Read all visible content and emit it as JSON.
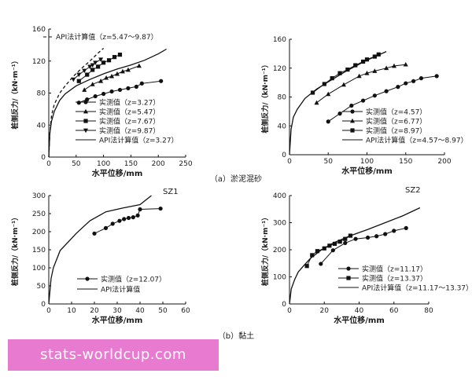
{
  "chart_data": [
    {
      "type": "line",
      "id": "a-left",
      "xlabel": "水平位移/mm",
      "ylabel": "桩侧反力/（kN·m⁻¹）",
      "xlim": [
        0,
        250
      ],
      "ylim": [
        0,
        160
      ],
      "xticks": [
        0,
        50,
        100,
        150,
        200,
        250
      ],
      "yticks": [
        0,
        40,
        80,
        120,
        160
      ],
      "annotations": [
        "API法计算值（z=5.47～9.87）"
      ],
      "series": [
        {
          "name": "实测值（z=3.27）",
          "marker": "circle",
          "x": [
            55,
            70,
            85,
            100,
            115,
            130,
            145,
            160,
            170,
            205
          ],
          "y": [
            68,
            72,
            76,
            79,
            82,
            84,
            86,
            88,
            92,
            95
          ]
        },
        {
          "name": "实测值（z=5.47）",
          "marker": "triangle",
          "x": [
            65,
            80,
            95,
            105,
            115,
            125,
            135,
            145,
            165
          ],
          "y": [
            84,
            91,
            95,
            99,
            101,
            104,
            107,
            109,
            114
          ]
        },
        {
          "name": "实测值（z=7.67）",
          "marker": "square",
          "x": [
            55,
            70,
            80,
            90,
            100,
            110,
            120,
            130
          ],
          "y": [
            95,
            103,
            109,
            113,
            118,
            121,
            125,
            128
          ]
        },
        {
          "name": "实测值（z=9.87）",
          "marker": "triangle-down",
          "x": [
            45,
            55,
            65,
            75,
            80,
            85,
            95
          ],
          "y": [
            97,
            103,
            108,
            113,
            115,
            118,
            122
          ]
        },
        {
          "name": "API法计算值（z=3.27）",
          "marker": "none",
          "style": "solid",
          "x": [
            0,
            2,
            5,
            10,
            20,
            30,
            50,
            75,
            100,
            125,
            150,
            175,
            200,
            215
          ],
          "y": [
            0,
            30,
            45,
            57,
            71,
            79,
            89,
            97,
            104,
            110,
            115,
            121,
            129,
            135
          ]
        },
        {
          "name": "API法计算值（z=5.47～9.87）",
          "marker": "none",
          "style": "dashed",
          "x": [
            0,
            2,
            5,
            10,
            20,
            30,
            45,
            60,
            75,
            90,
            100
          ],
          "y": [
            0,
            30,
            52,
            66,
            80,
            89,
            101,
            111,
            120,
            130,
            136
          ]
        }
      ]
    },
    {
      "type": "line",
      "id": "a-right",
      "xlabel": "水平位移/mm",
      "ylabel": "桩侧反力/（kN·m⁻¹）",
      "xlim": [
        0,
        200
      ],
      "ylim": [
        0,
        160
      ],
      "xticks": [
        0,
        50,
        100,
        150,
        200
      ],
      "yticks": [
        0,
        40,
        80,
        120,
        160
      ],
      "series": [
        {
          "name": "实测值（z=4.57）",
          "marker": "circle",
          "x": [
            50,
            65,
            80,
            95,
            110,
            125,
            140,
            150,
            160,
            170,
            190
          ],
          "y": [
            46,
            57,
            68,
            75,
            82,
            88,
            94,
            99,
            102,
            106,
            109
          ]
        },
        {
          "name": "实测值（z=6.77）",
          "marker": "triangle",
          "x": [
            35,
            50,
            70,
            90,
            100,
            110,
            125,
            135,
            150
          ],
          "y": [
            72,
            84,
            97,
            109,
            113,
            116,
            120,
            123,
            125
          ]
        },
        {
          "name": "实测值（z=8.97）",
          "marker": "square",
          "x": [
            30,
            45,
            55,
            65,
            75,
            85,
            95,
            100,
            110,
            115
          ],
          "y": [
            86,
            98,
            106,
            113,
            118,
            124,
            129,
            132,
            136,
            139
          ]
        },
        {
          "name": "API法计算值（z=4.57～8.97）",
          "marker": "none",
          "style": "solid",
          "x": [
            0,
            2,
            5,
            10,
            20,
            35,
            50,
            75,
            100,
            125
          ],
          "y": [
            0,
            35,
            52,
            63,
            78,
            91,
            101,
            117,
            131,
            143
          ]
        }
      ]
    },
    {
      "type": "line",
      "id": "b-left",
      "panel_title": "SZ1",
      "xlabel": "水平位移/mm",
      "ylabel": "桩侧反力/（kN·m⁻¹）",
      "xlim": [
        0,
        60
      ],
      "ylim": [
        0,
        300
      ],
      "xticks": [
        0,
        10,
        20,
        30,
        40,
        50,
        60
      ],
      "yticks": [
        0,
        50,
        100,
        150,
        200,
        250,
        300
      ],
      "series": [
        {
          "name": "实测值（z=12.07）",
          "marker": "circle",
          "x": [
            20,
            25,
            28,
            31,
            33,
            35,
            37,
            39,
            40,
            49
          ],
          "y": [
            195,
            210,
            222,
            230,
            235,
            238,
            240,
            245,
            262,
            264
          ]
        },
        {
          "name": "API法计算值",
          "marker": "none",
          "style": "solid",
          "x": [
            0,
            1,
            2,
            5,
            8,
            12,
            18,
            25,
            32,
            40,
            45
          ],
          "y": [
            0,
            70,
            100,
            148,
            168,
            195,
            230,
            255,
            265,
            275,
            300
          ]
        }
      ]
    },
    {
      "type": "line",
      "id": "b-right",
      "panel_title": "SZ2",
      "xlabel": "水平位移/mm",
      "ylabel": "桩侧反力/（kN·m⁻¹）",
      "xlim": [
        0,
        80
      ],
      "ylim": [
        0,
        400
      ],
      "xticks": [
        0,
        20,
        40,
        60,
        80
      ],
      "yticks": [
        0,
        100,
        200,
        300,
        400
      ],
      "series": [
        {
          "name": "实测值（z=11.17）",
          "marker": "circle",
          "x": [
            18,
            25,
            32,
            38,
            45,
            50,
            55,
            60,
            67
          ],
          "y": [
            148,
            198,
            225,
            240,
            245,
            250,
            258,
            270,
            280
          ]
        },
        {
          "name": "实测值（z=13.37）",
          "marker": "square",
          "x": [
            10,
            13,
            16,
            20,
            23,
            26,
            29,
            32,
            35
          ],
          "y": [
            140,
            180,
            195,
            205,
            215,
            222,
            230,
            240,
            252
          ]
        },
        {
          "name": "API法计算值（z=11.17～13.37）",
          "marker": "none",
          "style": "solid",
          "x": [
            0,
            1,
            3,
            5,
            8,
            12,
            18,
            25,
            35,
            45,
            55,
            65,
            75
          ],
          "y": [
            0,
            55,
            90,
            118,
            140,
            168,
            198,
            225,
            252,
            275,
            300,
            325,
            355
          ]
        }
      ]
    }
  ],
  "captions": {
    "a": "（a）淤泥混砂",
    "b": "（b）黏土"
  },
  "watermark": "stats-worldcup.com"
}
